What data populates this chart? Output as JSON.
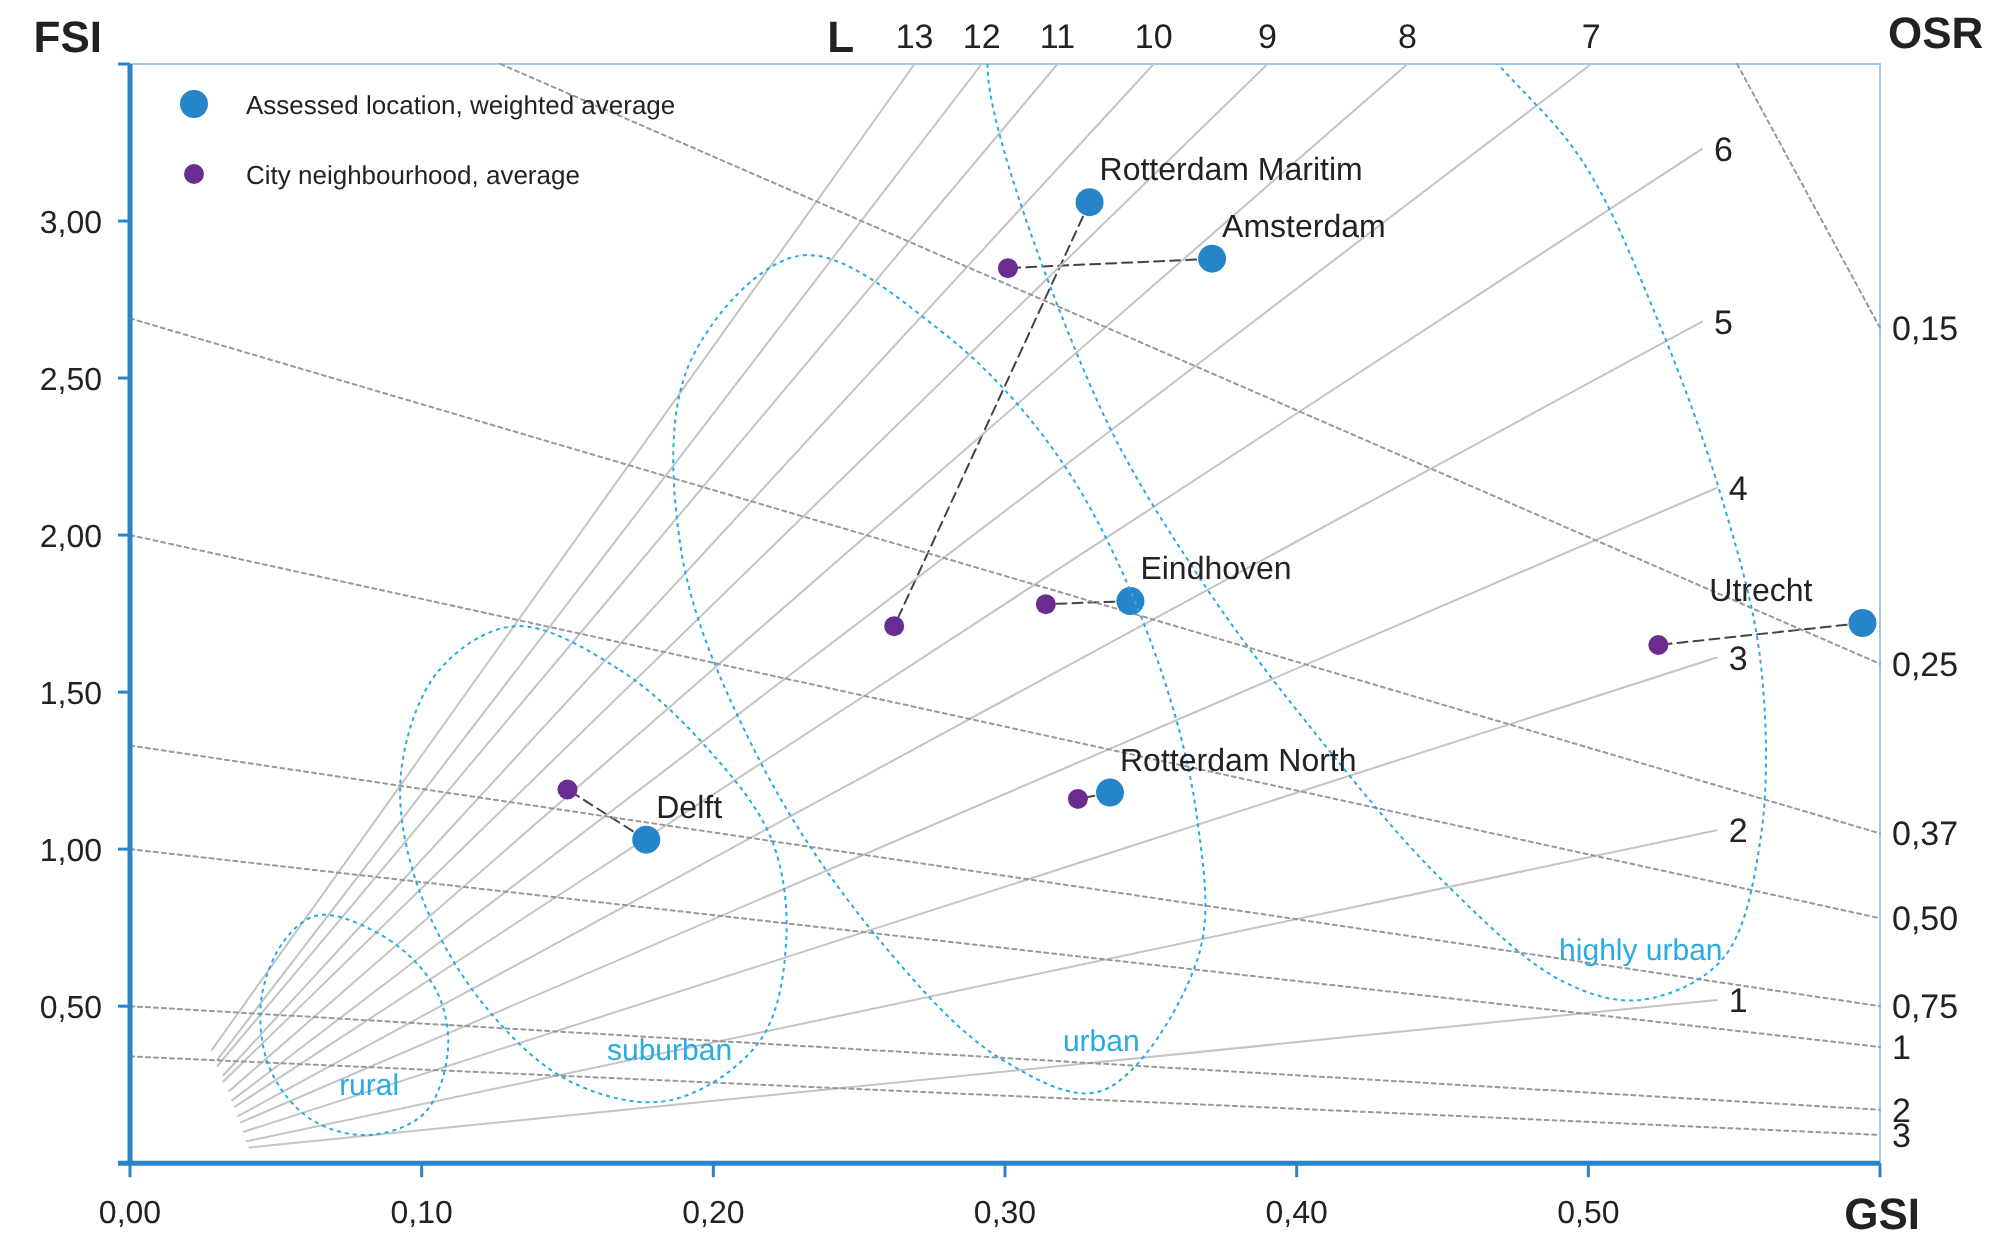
{
  "chart_data": {
    "type": "scatter",
    "xlabel": "GSI",
    "ylabel": "FSI",
    "y2label": "OSR",
    "legend": "top left",
    "grid": false,
    "xlim": [
      0,
      0.6
    ],
    "xticks": [
      {
        "value": 0,
        "label": "0,00"
      },
      {
        "value": 0.1,
        "label": "0,10"
      },
      {
        "value": 0.2,
        "label": "0,20"
      },
      {
        "value": 0.3,
        "label": "0,30"
      },
      {
        "value": 0.4,
        "label": "0,40"
      },
      {
        "value": 0.5,
        "label": "0,50"
      },
      {
        "value": 0.6,
        "label": null
      }
    ],
    "ylim": [
      0,
      3.5
    ],
    "yticks": [
      {
        "value": 0.5,
        "label": "0,50"
      },
      {
        "value": 1,
        "label": "1,00"
      },
      {
        "value": 1.5,
        "label": "1,50"
      },
      {
        "value": 2,
        "label": "2,00"
      },
      {
        "value": 2.5,
        "label": "2,50"
      },
      {
        "value": 3,
        "label": "3,00"
      },
      {
        "value": 3.5,
        "label": null
      }
    ],
    "annotations": [
      "L",
      "rural",
      "suburban",
      "urban",
      "highly urban",
      {
        "text": "Rotterdam Maritim",
        "x": 0.329,
        "y": 3.06
      },
      {
        "text": "Amsterdam",
        "x": 0.371,
        "y": 2.88
      },
      {
        "text": "Eindhoven",
        "x": 0.343,
        "y": 1.79
      },
      {
        "text": "Utrecht",
        "x": 0.594,
        "y": 1.72
      },
      {
        "text": "Rotterdam North",
        "x": 0.336,
        "y": 1.18
      },
      {
        "text": "Delft",
        "x": 0.177,
        "y": 1.03
      }
    ],
    "series": [
      {
        "name": "Assessed location, weighted average",
        "type": "scatter",
        "marker": "circle",
        "color": "#2685c9",
        "x": [
          0.329,
          0.371,
          0.343,
          0.594,
          0.336,
          0.177
        ],
        "values": [
          3.06,
          2.88,
          1.79,
          1.72,
          1.18,
          1.03
        ]
      },
      {
        "name": "City neighbourhood, average",
        "type": "scatter",
        "marker": "circle",
        "color": "#6a2c91",
        "x": [
          0.262,
          0.301,
          0.314,
          0.524,
          0.325,
          0.15
        ],
        "values": [
          1.71,
          2.85,
          1.78,
          1.65,
          1.16,
          1.19
        ]
      },
      {
        "type": "line",
        "color": "#444444",
        "line_style": "dashed",
        "x": [
          0.329,
          0.262
        ],
        "values": [
          3.06,
          1.71
        ]
      },
      {
        "type": "line",
        "color": "#444444",
        "line_style": "dashed",
        "x": [
          0.371,
          0.301
        ],
        "values": [
          2.88,
          2.85
        ]
      },
      {
        "type": "line",
        "color": "#444444",
        "line_style": "dashed",
        "x": [
          0.343,
          0.314
        ],
        "values": [
          1.79,
          1.78
        ]
      },
      {
        "type": "line",
        "color": "#444444",
        "line_style": "dashed",
        "x": [
          0.594,
          0.524
        ],
        "values": [
          1.72,
          1.65
        ]
      },
      {
        "type": "line",
        "color": "#444444",
        "line_style": "dashed",
        "x": [
          0.336,
          0.325
        ],
        "values": [
          1.18,
          1.16
        ]
      },
      {
        "type": "line",
        "color": "#444444",
        "line_style": "dashed",
        "x": [
          0.177,
          0.15
        ],
        "values": [
          1.03,
          1.19
        ]
      },
      {
        "name": "13",
        "type": "line",
        "color": "#c4c4c4",
        "line_style": "solid",
        "x": [
          0.028,
          0.269
        ],
        "values": [
          0.36,
          3.5
        ]
      },
      {
        "name": "12",
        "type": "line",
        "color": "#c4c4c4",
        "line_style": "solid",
        "x": [
          0.03,
          0.292
        ],
        "values": [
          0.33,
          3.5
        ]
      },
      {
        "name": "11",
        "type": "line",
        "color": "#c4c4c4",
        "line_style": "solid",
        "x": [
          0.03,
          0.318
        ],
        "values": [
          0.31,
          3.5
        ]
      },
      {
        "name": "10",
        "type": "line",
        "color": "#c4c4c4",
        "line_style": "solid",
        "x": [
          0.032,
          0.351
        ],
        "values": [
          0.28,
          3.5
        ]
      },
      {
        "name": "9",
        "type": "line",
        "color": "#c4c4c4",
        "line_style": "solid",
        "x": [
          0.032,
          0.39
        ],
        "values": [
          0.26,
          3.5
        ]
      },
      {
        "name": "8",
        "type": "line",
        "color": "#c4c4c4",
        "line_style": "solid",
        "x": [
          0.034,
          0.438
        ],
        "values": [
          0.23,
          3.5
        ]
      },
      {
        "name": "7",
        "type": "line",
        "color": "#c4c4c4",
        "line_style": "solid",
        "x": [
          0.035,
          0.501
        ],
        "values": [
          0.2,
          3.5
        ]
      },
      {
        "name": "6",
        "type": "line",
        "color": "#c4c4c4",
        "line_style": "solid",
        "x": [
          0.036,
          0.539
        ],
        "values": [
          0.18,
          3.23
        ]
      },
      {
        "name": "5",
        "type": "line",
        "color": "#c4c4c4",
        "line_style": "solid",
        "x": [
          0.037,
          0.539
        ],
        "values": [
          0.15,
          2.68
        ]
      },
      {
        "name": "4",
        "type": "line",
        "color": "#c4c4c4",
        "line_style": "solid",
        "x": [
          0.038,
          0.544
        ],
        "values": [
          0.13,
          2.15
        ]
      },
      {
        "name": "3",
        "type": "line",
        "color": "#c4c4c4",
        "line_style": "solid",
        "x": [
          0.039,
          0.544
        ],
        "values": [
          0.1,
          1.61
        ]
      },
      {
        "name": "2",
        "type": "line",
        "color": "#c4c4c4",
        "line_style": "solid",
        "x": [
          0.04,
          0.544
        ],
        "values": [
          0.07,
          1.06
        ]
      },
      {
        "name": "1",
        "type": "line",
        "color": "#c4c4c4",
        "line_style": "solid",
        "x": [
          0.041,
          0.544
        ],
        "values": [
          0.05,
          0.52
        ]
      },
      {
        "name": "0,15",
        "type": "line",
        "color": "#999999",
        "line_style": "dotted",
        "x": [
          0.551,
          0.6
        ],
        "values": [
          3.5,
          2.66
        ]
      },
      {
        "name": "0,25",
        "type": "line",
        "color": "#999999",
        "line_style": "dotted",
        "x": [
          0.127,
          0.6
        ],
        "values": [
          3.5,
          1.59
        ]
      },
      {
        "name": "0,37",
        "type": "line",
        "color": "#999999",
        "line_style": "dotted",
        "x": [
          0,
          0.6
        ],
        "values": [
          2.69,
          1.05
        ]
      },
      {
        "name": "0,50",
        "type": "line",
        "color": "#999999",
        "line_style": "dotted",
        "x": [
          0,
          0.6
        ],
        "values": [
          2,
          0.78
        ]
      },
      {
        "name": "0,75",
        "type": "line",
        "color": "#999999",
        "line_style": "dotted",
        "x": [
          0,
          0.6
        ],
        "values": [
          1.33,
          0.5
        ]
      },
      {
        "name": "1",
        "type": "line",
        "color": "#999999",
        "line_style": "dotted",
        "x": [
          0,
          0.6
        ],
        "values": [
          1,
          0.37
        ]
      },
      {
        "name": "2",
        "type": "line",
        "color": "#999999",
        "line_style": "dotted",
        "x": [
          0,
          0.6
        ],
        "values": [
          0.5,
          0.17
        ]
      },
      {
        "name": "3",
        "type": "line",
        "color": "#999999",
        "line_style": "dotted",
        "x": [
          0,
          0.6
        ],
        "values": [
          0.34,
          0.09
        ]
      }
    ]
  }
}
